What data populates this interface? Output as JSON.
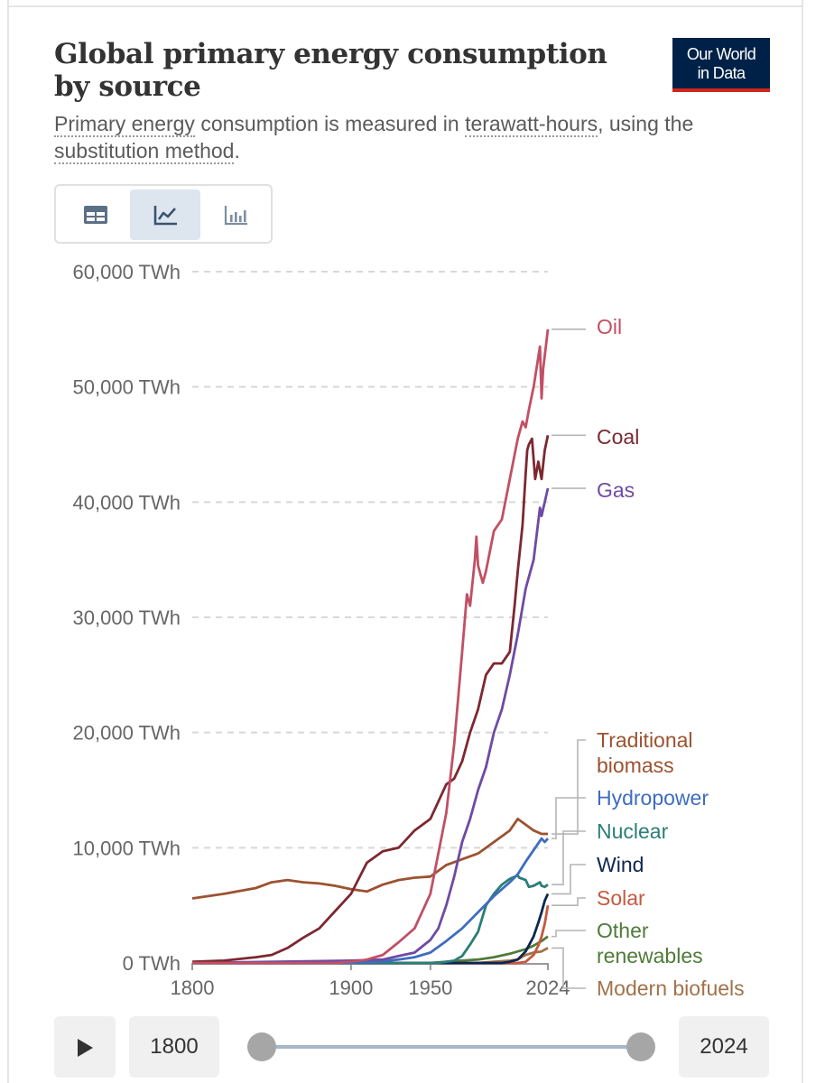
{
  "header": {
    "title": "Global primary energy consumption by source",
    "subtitle_parts": [
      "Primary energy",
      " consumption is measured in ",
      "terawatt-hours",
      ", using the ",
      "substitution method",
      "."
    ],
    "logo_line1": "Our World",
    "logo_line2": "in Data"
  },
  "view_switch": {
    "items": [
      {
        "name": "table-icon",
        "active": false
      },
      {
        "name": "line-chart-icon",
        "active": true
      },
      {
        "name": "bar-chart-icon",
        "active": false
      }
    ]
  },
  "controls": {
    "play_icon": "play-icon",
    "start_year": "1800",
    "end_year": "2024",
    "range_start": 1800,
    "range_end": 2024
  },
  "colors": {
    "Oil": "#c15065",
    "Coal": "#7c2831",
    "Gas": "#6e4ba3",
    "Traditional biomass": "#9c5230",
    "Hydropower": "#3e6dbf",
    "Nuclear": "#2a7e77",
    "Wind": "#0e2650",
    "Solar": "#c55a3e",
    "Other renewables": "#4f7b39",
    "Modern biofuels": "#a1724a"
  },
  "chart_data": {
    "type": "line",
    "title": "",
    "xlabel": "",
    "ylabel": "",
    "xlim": [
      1800,
      2024
    ],
    "ylim": [
      0,
      60000
    ],
    "grid": "horizontal dashed",
    "legend": "right (end labels)",
    "y_ticks": [
      0,
      10000,
      20000,
      30000,
      40000,
      50000,
      60000
    ],
    "y_tick_labels": [
      "0 TWh",
      "10,000 TWh",
      "20,000 TWh",
      "30,000 TWh",
      "40,000 TWh",
      "50,000 TWh",
      "60,000 TWh"
    ],
    "x_ticks": [
      1800,
      1900,
      1950,
      2024
    ],
    "x_tick_labels": [
      "1800",
      "1900",
      "1950",
      "2024"
    ],
    "series": [
      {
        "name": "Oil",
        "label_lines": [
          "Oil"
        ],
        "points": [
          [
            1800,
            0
          ],
          [
            1890,
            0
          ],
          [
            1900,
            100
          ],
          [
            1910,
            300
          ],
          [
            1920,
            700
          ],
          [
            1930,
            1800
          ],
          [
            1940,
            3000
          ],
          [
            1950,
            6000
          ],
          [
            1955,
            9500
          ],
          [
            1960,
            13000
          ],
          [
            1965,
            19000
          ],
          [
            1970,
            27000
          ],
          [
            1973,
            32000
          ],
          [
            1975,
            31000
          ],
          [
            1978,
            35000
          ],
          [
            1979,
            37000
          ],
          [
            1980,
            34500
          ],
          [
            1983,
            33000
          ],
          [
            1985,
            34000
          ],
          [
            1990,
            37500
          ],
          [
            1995,
            38500
          ],
          [
            2000,
            42000
          ],
          [
            2005,
            45500
          ],
          [
            2008,
            47000
          ],
          [
            2010,
            46500
          ],
          [
            2012,
            48000
          ],
          [
            2015,
            50000
          ],
          [
            2019,
            53500
          ],
          [
            2020,
            49000
          ],
          [
            2021,
            51500
          ],
          [
            2024,
            55000
          ]
        ]
      },
      {
        "name": "Coal",
        "label_lines": [
          "Coal"
        ],
        "points": [
          [
            1800,
            100
          ],
          [
            1820,
            200
          ],
          [
            1840,
            500
          ],
          [
            1850,
            700
          ],
          [
            1860,
            1300
          ],
          [
            1870,
            2200
          ],
          [
            1880,
            3000
          ],
          [
            1890,
            4500
          ],
          [
            1900,
            6000
          ],
          [
            1910,
            8700
          ],
          [
            1920,
            9700
          ],
          [
            1930,
            10000
          ],
          [
            1940,
            11500
          ],
          [
            1950,
            12500
          ],
          [
            1955,
            14000
          ],
          [
            1960,
            15500
          ],
          [
            1965,
            16000
          ],
          [
            1970,
            17500
          ],
          [
            1975,
            20000
          ],
          [
            1980,
            22000
          ],
          [
            1985,
            25000
          ],
          [
            1990,
            26000
          ],
          [
            1995,
            26000
          ],
          [
            2000,
            27000
          ],
          [
            2003,
            31000
          ],
          [
            2005,
            34000
          ],
          [
            2008,
            38000
          ],
          [
            2010,
            42500
          ],
          [
            2011,
            44500
          ],
          [
            2012,
            45000
          ],
          [
            2014,
            45500
          ],
          [
            2016,
            42000
          ],
          [
            2018,
            43500
          ],
          [
            2020,
            42000
          ],
          [
            2022,
            44500
          ],
          [
            2024,
            45800
          ]
        ]
      },
      {
        "name": "Gas",
        "label_lines": [
          "Gas"
        ],
        "points": [
          [
            1800,
            0
          ],
          [
            1900,
            200
          ],
          [
            1920,
            300
          ],
          [
            1930,
            600
          ],
          [
            1940,
            900
          ],
          [
            1950,
            2000
          ],
          [
            1955,
            3000
          ],
          [
            1960,
            5000
          ],
          [
            1965,
            7500
          ],
          [
            1970,
            10500
          ],
          [
            1975,
            12500
          ],
          [
            1980,
            15000
          ],
          [
            1985,
            17000
          ],
          [
            1990,
            20000
          ],
          [
            1995,
            22000
          ],
          [
            2000,
            25000
          ],
          [
            2005,
            28500
          ],
          [
            2010,
            32500
          ],
          [
            2015,
            35000
          ],
          [
            2019,
            39500
          ],
          [
            2020,
            38800
          ],
          [
            2022,
            40000
          ],
          [
            2024,
            41200
          ]
        ]
      },
      {
        "name": "Traditional biomass",
        "label_lines": [
          "Traditional",
          "biomass"
        ],
        "points": [
          [
            1800,
            5600
          ],
          [
            1820,
            6000
          ],
          [
            1840,
            6500
          ],
          [
            1850,
            7000
          ],
          [
            1860,
            7200
          ],
          [
            1870,
            7000
          ],
          [
            1880,
            6900
          ],
          [
            1890,
            6700
          ],
          [
            1900,
            6400
          ],
          [
            1910,
            6200
          ],
          [
            1920,
            6800
          ],
          [
            1930,
            7200
          ],
          [
            1940,
            7400
          ],
          [
            1950,
            7500
          ],
          [
            1960,
            8500
          ],
          [
            1970,
            9000
          ],
          [
            1980,
            9500
          ],
          [
            1990,
            10500
          ],
          [
            2000,
            11500
          ],
          [
            2005,
            12500
          ],
          [
            2010,
            12000
          ],
          [
            2015,
            11500
          ],
          [
            2020,
            11200
          ],
          [
            2024,
            11200
          ]
        ]
      },
      {
        "name": "Hydropower",
        "label_lines": [
          "Hydropower"
        ],
        "points": [
          [
            1800,
            0
          ],
          [
            1900,
            0
          ],
          [
            1920,
            150
          ],
          [
            1930,
            300
          ],
          [
            1940,
            500
          ],
          [
            1950,
            900
          ],
          [
            1960,
            1900
          ],
          [
            1970,
            3000
          ],
          [
            1980,
            4400
          ],
          [
            1990,
            5800
          ],
          [
            2000,
            7000
          ],
          [
            2005,
            7700
          ],
          [
            2010,
            8800
          ],
          [
            2015,
            9800
          ],
          [
            2020,
            10800
          ],
          [
            2022,
            10500
          ],
          [
            2024,
            10800
          ]
        ]
      },
      {
        "name": "Nuclear",
        "label_lines": [
          "Nuclear"
        ],
        "points": [
          [
            1800,
            0
          ],
          [
            1955,
            0
          ],
          [
            1965,
            200
          ],
          [
            1970,
            600
          ],
          [
            1975,
            1600
          ],
          [
            1980,
            2700
          ],
          [
            1985,
            5000
          ],
          [
            1990,
            6000
          ],
          [
            1995,
            6800
          ],
          [
            2000,
            7300
          ],
          [
            2005,
            7600
          ],
          [
            2006,
            7400
          ],
          [
            2010,
            7200
          ],
          [
            2012,
            6600
          ],
          [
            2015,
            6700
          ],
          [
            2019,
            7000
          ],
          [
            2020,
            6700
          ],
          [
            2022,
            6600
          ],
          [
            2024,
            6800
          ]
        ]
      },
      {
        "name": "Wind",
        "label_lines": [
          "Wind"
        ],
        "points": [
          [
            1800,
            0
          ],
          [
            1995,
            0
          ],
          [
            2000,
            100
          ],
          [
            2005,
            300
          ],
          [
            2010,
            1000
          ],
          [
            2015,
            2300
          ],
          [
            2018,
            3500
          ],
          [
            2020,
            4400
          ],
          [
            2022,
            5400
          ],
          [
            2024,
            6000
          ]
        ]
      },
      {
        "name": "Solar",
        "label_lines": [
          "Solar"
        ],
        "points": [
          [
            1800,
            0
          ],
          [
            2005,
            0
          ],
          [
            2010,
            100
          ],
          [
            2015,
            700
          ],
          [
            2018,
            1500
          ],
          [
            2020,
            2300
          ],
          [
            2022,
            3400
          ],
          [
            2024,
            5000
          ]
        ]
      },
      {
        "name": "Other renewables",
        "label_lines": [
          "Other",
          "renewables"
        ],
        "points": [
          [
            1800,
            0
          ],
          [
            1900,
            0
          ],
          [
            1950,
            0
          ],
          [
            1960,
            100
          ],
          [
            1970,
            200
          ],
          [
            1980,
            300
          ],
          [
            1990,
            500
          ],
          [
            2000,
            800
          ],
          [
            2010,
            1200
          ],
          [
            2015,
            1500
          ],
          [
            2020,
            1900
          ],
          [
            2024,
            2300
          ]
        ]
      },
      {
        "name": "Modern biofuels",
        "label_lines": [
          "Modern biofuels"
        ],
        "points": [
          [
            1800,
            0
          ],
          [
            1980,
            0
          ],
          [
            1990,
            100
          ],
          [
            2000,
            200
          ],
          [
            2005,
            300
          ],
          [
            2010,
            700
          ],
          [
            2015,
            900
          ],
          [
            2020,
            1000
          ],
          [
            2024,
            1300
          ]
        ]
      }
    ]
  }
}
